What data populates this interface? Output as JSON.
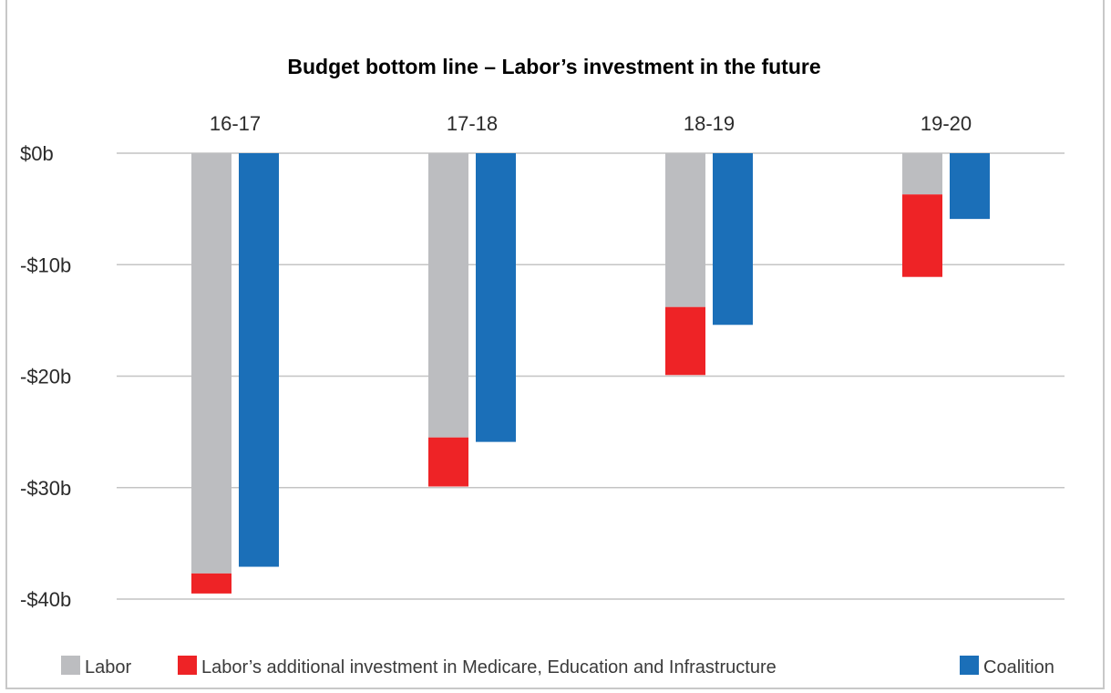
{
  "chart_data": {
    "type": "bar",
    "title": "Budget bottom line – Labor’s investment in the future",
    "categories": [
      "16-17",
      "17-18",
      "18-19",
      "19-20"
    ],
    "y_tick_values": [
      0,
      -10,
      -20,
      -30,
      -40
    ],
    "y_tick_labels": [
      "$0b",
      "-$10b",
      "-$20b",
      "-$30b",
      "-$40b"
    ],
    "ylim": [
      -40,
      0
    ],
    "grid": true,
    "legend_position": "bottom",
    "series": [
      {
        "name": "Labor",
        "color": "#bcbdc0",
        "stack": "labor",
        "values": [
          -37.7,
          -25.5,
          -13.8,
          -3.7
        ]
      },
      {
        "name": "Labor’s additional investment in Medicare, Education and Infrastructure",
        "color": "#ee2326",
        "stack": "labor",
        "values": [
          -1.8,
          -4.4,
          -6.1,
          -7.4
        ]
      },
      {
        "name": "Coalition",
        "color": "#1b6fb8",
        "stack": "coalition",
        "values": [
          -37.1,
          -25.9,
          -15.4,
          -5.9
        ]
      }
    ]
  }
}
